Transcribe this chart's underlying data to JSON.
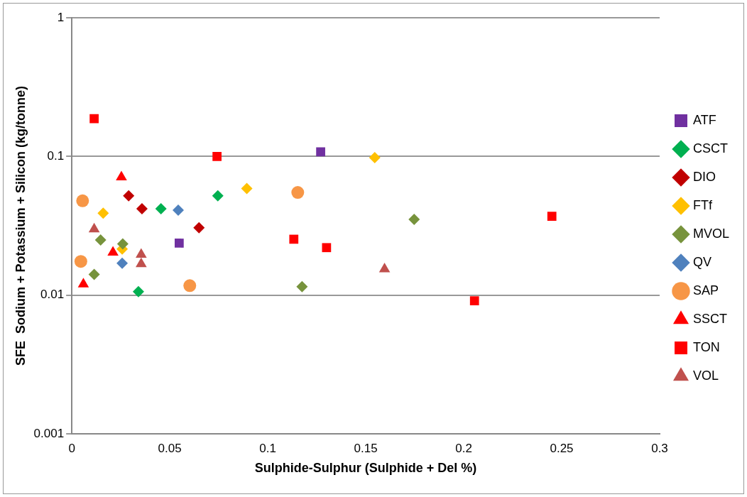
{
  "chart_data": {
    "type": "scatter",
    "xlabel": "Sulphide-Sulphur (Sulphide + Del %)",
    "ylabel": "SFE  Sodium + Potassium + Silicon (kg/tonne)",
    "log": "y",
    "grid": "y",
    "legend": "right",
    "xlim": [
      0,
      0.3
    ],
    "xticks": [
      0,
      0.05,
      0.1,
      0.15,
      0.2,
      0.25,
      0.3
    ],
    "ylim": [
      0.001,
      1
    ],
    "yticks": [
      0.001,
      0.01,
      0.1,
      1
    ],
    "series": [
      {
        "name": "ATF",
        "color": "#7030a0",
        "marker": "square",
        "x": [
          0.0548,
          0.127
        ],
        "values": [
          0.0237,
          0.108
        ]
      },
      {
        "name": "CSCT",
        "color": "#00b050",
        "marker": "diamond",
        "x": [
          0.034,
          0.0455,
          0.0745
        ],
        "values": [
          0.0106,
          0.042,
          0.052
        ]
      },
      {
        "name": "DIO",
        "color": "#c00000",
        "marker": "diamond",
        "x": [
          0.029,
          0.0358,
          0.0649
        ],
        "values": [
          0.052,
          0.042,
          0.0306
        ]
      },
      {
        "name": "FTf",
        "color": "#ffc000",
        "marker": "diamond",
        "x": [
          0.016,
          0.0257,
          0.0893,
          0.1546
        ],
        "values": [
          0.039,
          0.0215,
          0.0587,
          0.098
        ]
      },
      {
        "name": "MVOL",
        "color": "#77933c",
        "marker": "diamond",
        "x": [
          0.0147,
          0.026,
          0.0114,
          0.1175,
          0.1747
        ],
        "values": [
          0.025,
          0.0234,
          0.0141,
          0.0115,
          0.0352
        ]
      },
      {
        "name": "QV",
        "color": "#4f81bd",
        "marker": "diamond",
        "x": [
          0.0257,
          0.0543
        ],
        "values": [
          0.017,
          0.041
        ]
      },
      {
        "name": "SAP",
        "color": "#f79646",
        "marker": "circle",
        "x": [
          0.0055,
          0.0046,
          0.0602,
          0.1153
        ],
        "values": [
          0.0479,
          0.0175,
          0.0117,
          0.055
        ]
      },
      {
        "name": "SSCT",
        "color": "#ff0000",
        "marker": "triangle",
        "x": [
          0.0059,
          0.0253,
          0.021
        ],
        "values": [
          0.012,
          0.071,
          0.0203
        ]
      },
      {
        "name": "TON",
        "color": "#ff0000",
        "marker": "square",
        "x": [
          0.0114,
          0.0741,
          0.1133,
          0.13,
          0.2055,
          0.245
        ],
        "values": [
          0.187,
          0.1,
          0.0253,
          0.022,
          0.0091,
          0.037
        ]
      },
      {
        "name": "VOL",
        "color": "#c0504d",
        "marker": "triangle",
        "x": [
          0.0114,
          0.0354,
          0.0354,
          0.1596
        ],
        "values": [
          0.0299,
          0.0196,
          0.0168,
          0.0154
        ]
      }
    ]
  }
}
